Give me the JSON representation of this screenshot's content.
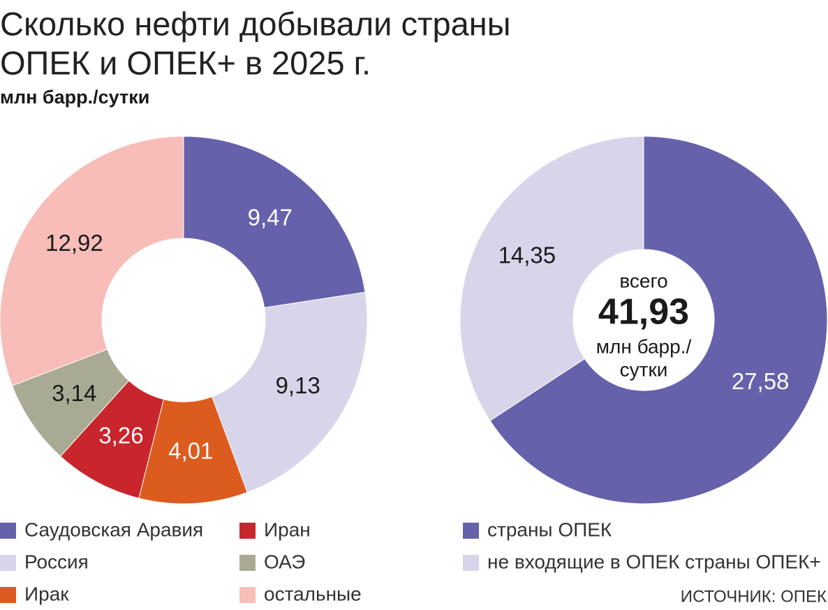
{
  "title": [
    "Сколько нефти добывали страны",
    "ОПЕК и ОПЕК+ в 2025 г."
  ],
  "subtitle": "млн барр./сутки",
  "source": "ИСТОЧНИК: ОПЕК",
  "chart_data": [
    {
      "type": "donut",
      "categories": [
        "Саудовская Аравия",
        "Россия",
        "Ирак",
        "Иран",
        "ОАЭ",
        "остальные"
      ],
      "values": [
        9.47,
        9.13,
        4.01,
        3.26,
        3.14,
        12.92
      ],
      "value_labels": [
        "9,47",
        "9,13",
        "4,01",
        "3,26",
        "3,14",
        "12,92"
      ],
      "colors": [
        "#6561ab",
        "#d8d5ea",
        "#dc5b1f",
        "#c9252c",
        "#a9aa94",
        "#f8bdb8"
      ]
    },
    {
      "type": "donut",
      "categories": [
        "страны ОПЕК",
        "не входящие в ОПЕК страны ОПЕК+"
      ],
      "values": [
        27.58,
        14.35
      ],
      "value_labels": [
        "27,58",
        "14,35"
      ],
      "colors": [
        "#6561ab",
        "#d8d5ea"
      ],
      "total_caption": "всего",
      "total": 41.93,
      "total_label": "41,93",
      "total_unit": [
        "млн барр./",
        "сутки"
      ]
    }
  ]
}
